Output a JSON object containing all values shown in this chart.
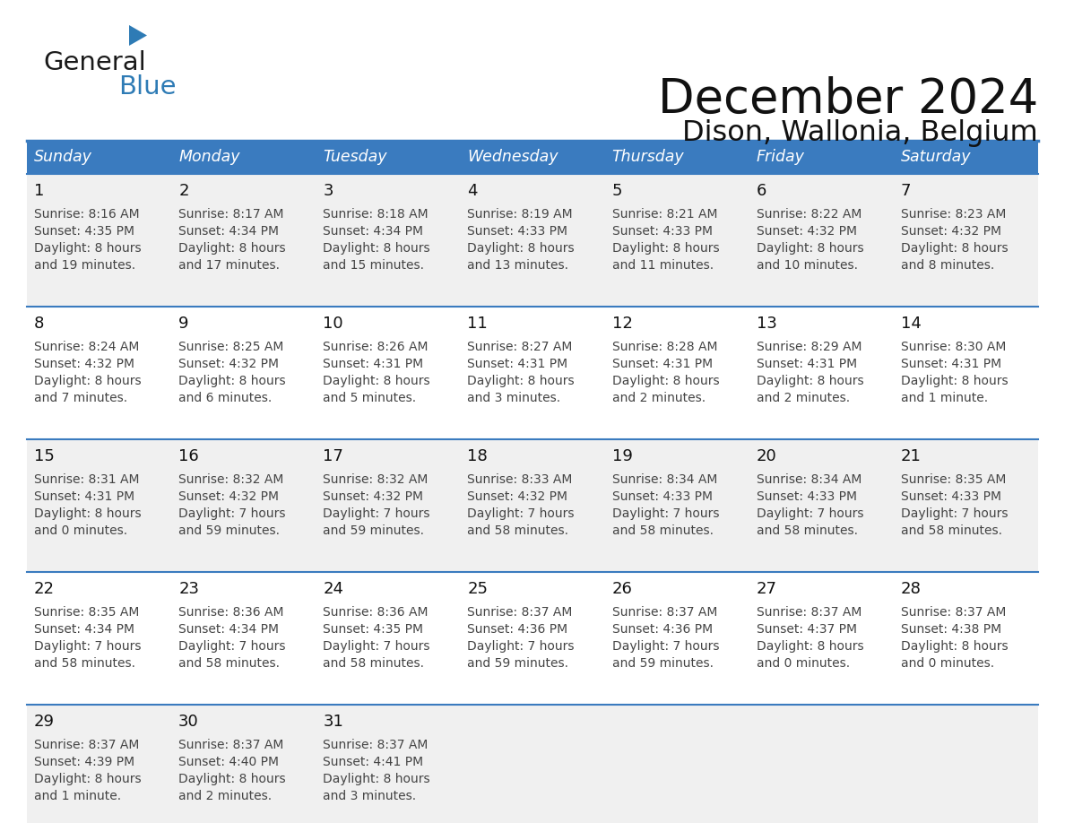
{
  "title": "December 2024",
  "subtitle": "Dison, Wallonia, Belgium",
  "days_of_week": [
    "Sunday",
    "Monday",
    "Tuesday",
    "Wednesday",
    "Thursday",
    "Friday",
    "Saturday"
  ],
  "header_bg": "#3a7bbf",
  "header_text_color": "#FFFFFF",
  "cell_bg_odd_week": "#f0f0f0",
  "cell_bg_even_week": "#FFFFFF",
  "divider_color": "#3a7bbf",
  "text_color": "#444444",
  "day_number_color": "#111111",
  "calendar_data": [
    {
      "week": 1,
      "days": [
        {
          "day": 1,
          "col": 0,
          "sunrise": "8:16 AM",
          "sunset": "4:35 PM",
          "daylight_line1": "Daylight: 8 hours",
          "daylight_line2": "and 19 minutes."
        },
        {
          "day": 2,
          "col": 1,
          "sunrise": "8:17 AM",
          "sunset": "4:34 PM",
          "daylight_line1": "Daylight: 8 hours",
          "daylight_line2": "and 17 minutes."
        },
        {
          "day": 3,
          "col": 2,
          "sunrise": "8:18 AM",
          "sunset": "4:34 PM",
          "daylight_line1": "Daylight: 8 hours",
          "daylight_line2": "and 15 minutes."
        },
        {
          "day": 4,
          "col": 3,
          "sunrise": "8:19 AM",
          "sunset": "4:33 PM",
          "daylight_line1": "Daylight: 8 hours",
          "daylight_line2": "and 13 minutes."
        },
        {
          "day": 5,
          "col": 4,
          "sunrise": "8:21 AM",
          "sunset": "4:33 PM",
          "daylight_line1": "Daylight: 8 hours",
          "daylight_line2": "and 11 minutes."
        },
        {
          "day": 6,
          "col": 5,
          "sunrise": "8:22 AM",
          "sunset": "4:32 PM",
          "daylight_line1": "Daylight: 8 hours",
          "daylight_line2": "and 10 minutes."
        },
        {
          "day": 7,
          "col": 6,
          "sunrise": "8:23 AM",
          "sunset": "4:32 PM",
          "daylight_line1": "Daylight: 8 hours",
          "daylight_line2": "and 8 minutes."
        }
      ]
    },
    {
      "week": 2,
      "days": [
        {
          "day": 8,
          "col": 0,
          "sunrise": "8:24 AM",
          "sunset": "4:32 PM",
          "daylight_line1": "Daylight: 8 hours",
          "daylight_line2": "and 7 minutes."
        },
        {
          "day": 9,
          "col": 1,
          "sunrise": "8:25 AM",
          "sunset": "4:32 PM",
          "daylight_line1": "Daylight: 8 hours",
          "daylight_line2": "and 6 minutes."
        },
        {
          "day": 10,
          "col": 2,
          "sunrise": "8:26 AM",
          "sunset": "4:31 PM",
          "daylight_line1": "Daylight: 8 hours",
          "daylight_line2": "and 5 minutes."
        },
        {
          "day": 11,
          "col": 3,
          "sunrise": "8:27 AM",
          "sunset": "4:31 PM",
          "daylight_line1": "Daylight: 8 hours",
          "daylight_line2": "and 3 minutes."
        },
        {
          "day": 12,
          "col": 4,
          "sunrise": "8:28 AM",
          "sunset": "4:31 PM",
          "daylight_line1": "Daylight: 8 hours",
          "daylight_line2": "and 2 minutes."
        },
        {
          "day": 13,
          "col": 5,
          "sunrise": "8:29 AM",
          "sunset": "4:31 PM",
          "daylight_line1": "Daylight: 8 hours",
          "daylight_line2": "and 2 minutes."
        },
        {
          "day": 14,
          "col": 6,
          "sunrise": "8:30 AM",
          "sunset": "4:31 PM",
          "daylight_line1": "Daylight: 8 hours",
          "daylight_line2": "and 1 minute."
        }
      ]
    },
    {
      "week": 3,
      "days": [
        {
          "day": 15,
          "col": 0,
          "sunrise": "8:31 AM",
          "sunset": "4:31 PM",
          "daylight_line1": "Daylight: 8 hours",
          "daylight_line2": "and 0 minutes."
        },
        {
          "day": 16,
          "col": 1,
          "sunrise": "8:32 AM",
          "sunset": "4:32 PM",
          "daylight_line1": "Daylight: 7 hours",
          "daylight_line2": "and 59 minutes."
        },
        {
          "day": 17,
          "col": 2,
          "sunrise": "8:32 AM",
          "sunset": "4:32 PM",
          "daylight_line1": "Daylight: 7 hours",
          "daylight_line2": "and 59 minutes."
        },
        {
          "day": 18,
          "col": 3,
          "sunrise": "8:33 AM",
          "sunset": "4:32 PM",
          "daylight_line1": "Daylight: 7 hours",
          "daylight_line2": "and 58 minutes."
        },
        {
          "day": 19,
          "col": 4,
          "sunrise": "8:34 AM",
          "sunset": "4:33 PM",
          "daylight_line1": "Daylight: 7 hours",
          "daylight_line2": "and 58 minutes."
        },
        {
          "day": 20,
          "col": 5,
          "sunrise": "8:34 AM",
          "sunset": "4:33 PM",
          "daylight_line1": "Daylight: 7 hours",
          "daylight_line2": "and 58 minutes."
        },
        {
          "day": 21,
          "col": 6,
          "sunrise": "8:35 AM",
          "sunset": "4:33 PM",
          "daylight_line1": "Daylight: 7 hours",
          "daylight_line2": "and 58 minutes."
        }
      ]
    },
    {
      "week": 4,
      "days": [
        {
          "day": 22,
          "col": 0,
          "sunrise": "8:35 AM",
          "sunset": "4:34 PM",
          "daylight_line1": "Daylight: 7 hours",
          "daylight_line2": "and 58 minutes."
        },
        {
          "day": 23,
          "col": 1,
          "sunrise": "8:36 AM",
          "sunset": "4:34 PM",
          "daylight_line1": "Daylight: 7 hours",
          "daylight_line2": "and 58 minutes."
        },
        {
          "day": 24,
          "col": 2,
          "sunrise": "8:36 AM",
          "sunset": "4:35 PM",
          "daylight_line1": "Daylight: 7 hours",
          "daylight_line2": "and 58 minutes."
        },
        {
          "day": 25,
          "col": 3,
          "sunrise": "8:37 AM",
          "sunset": "4:36 PM",
          "daylight_line1": "Daylight: 7 hours",
          "daylight_line2": "and 59 minutes."
        },
        {
          "day": 26,
          "col": 4,
          "sunrise": "8:37 AM",
          "sunset": "4:36 PM",
          "daylight_line1": "Daylight: 7 hours",
          "daylight_line2": "and 59 minutes."
        },
        {
          "day": 27,
          "col": 5,
          "sunrise": "8:37 AM",
          "sunset": "4:37 PM",
          "daylight_line1": "Daylight: 8 hours",
          "daylight_line2": "and 0 minutes."
        },
        {
          "day": 28,
          "col": 6,
          "sunrise": "8:37 AM",
          "sunset": "4:38 PM",
          "daylight_line1": "Daylight: 8 hours",
          "daylight_line2": "and 0 minutes."
        }
      ]
    },
    {
      "week": 5,
      "days": [
        {
          "day": 29,
          "col": 0,
          "sunrise": "8:37 AM",
          "sunset": "4:39 PM",
          "daylight_line1": "Daylight: 8 hours",
          "daylight_line2": "and 1 minute."
        },
        {
          "day": 30,
          "col": 1,
          "sunrise": "8:37 AM",
          "sunset": "4:40 PM",
          "daylight_line1": "Daylight: 8 hours",
          "daylight_line2": "and 2 minutes."
        },
        {
          "day": 31,
          "col": 2,
          "sunrise": "8:37 AM",
          "sunset": "4:41 PM",
          "daylight_line1": "Daylight: 8 hours",
          "daylight_line2": "and 3 minutes."
        }
      ]
    }
  ],
  "logo_text_general": "General",
  "logo_text_blue": "Blue",
  "logo_color_general": "#1a1a1a",
  "logo_color_blue": "#2E7BB5",
  "logo_triangle_color": "#2E7BB5",
  "fig_width": 11.88,
  "fig_height": 9.18,
  "dpi": 100
}
